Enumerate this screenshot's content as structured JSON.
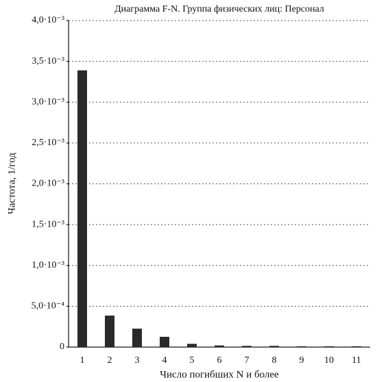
{
  "chart_data": {
    "type": "bar",
    "title": "Диаграмма F-N. Группа физических лиц: Персонал",
    "x_label": "Число погибших N и более",
    "y_label": "Частота, 1/год",
    "categories": [
      "1",
      "2",
      "3",
      "4",
      "5",
      "6",
      "7",
      "8",
      "9",
      "10",
      "11"
    ],
    "values": [
      0.00339,
      0.000386,
      0.000226,
      0.000126,
      4e-05,
      2e-05,
      1.5e-05,
      1.5e-05,
      1e-05,
      1e-05,
      1e-05
    ],
    "color": "#2a2a2a",
    "ylim": [
      0,
      0.004
    ],
    "yticks": [
      0,
      {
        "value": 0.0005,
        "label": "5,0·10⁻⁴"
      },
      {
        "value": 0.001,
        "label": "1,0·10⁻³"
      },
      {
        "value": 0.0015,
        "label": "1,5·10⁻³"
      },
      {
        "value": 0.002,
        "label": "2,0·10⁻³"
      },
      {
        "value": 0.0025,
        "label": "2,5·10⁻³"
      },
      {
        "value": 0.003,
        "label": "3,0·10⁻³"
      },
      {
        "value": 0.0035,
        "label": "3,5·10⁻³"
      },
      {
        "value": 0.004,
        "label": "4,0·10⁻³"
      }
    ],
    "grid": true
  }
}
